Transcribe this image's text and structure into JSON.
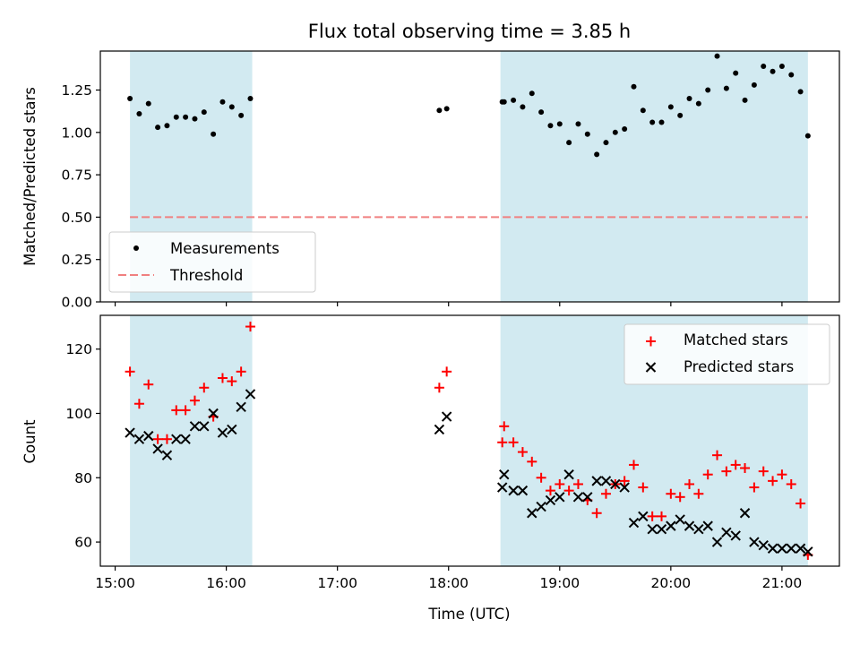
{
  "chart_data": [
    {
      "type": "scatter",
      "title": "Flux total observing time = 3.85 h",
      "ylabel": "Matched/Predicted stars",
      "xlabel": "",
      "ylim": [
        0,
        1.48
      ],
      "xlim": [
        "14:52",
        "21:31"
      ],
      "yticks": [
        "0.00",
        "0.25",
        "0.50",
        "0.75",
        "1.00",
        "1.25"
      ],
      "shaded_intervals": [
        [
          "15:08",
          "16:14"
        ],
        [
          "18:28",
          "21:14"
        ]
      ],
      "legend": {
        "position": "lower left",
        "measurements_label": "Measurements",
        "threshold_label": "Threshold"
      },
      "threshold": {
        "value": 0.5,
        "color": "#f08080"
      },
      "series": [
        {
          "name": "Measurements",
          "color": "#000000",
          "points": [
            [
              "15:08",
              1.2
            ],
            [
              "15:13",
              1.11
            ],
            [
              "15:18",
              1.17
            ],
            [
              "15:23",
              1.03
            ],
            [
              "15:28",
              1.04
            ],
            [
              "15:33",
              1.09
            ],
            [
              "15:38",
              1.09
            ],
            [
              "15:43",
              1.08
            ],
            [
              "15:48",
              1.12
            ],
            [
              "15:53",
              0.99
            ],
            [
              "15:58",
              1.18
            ],
            [
              "16:03",
              1.15
            ],
            [
              "16:08",
              1.1
            ],
            [
              "16:13",
              1.2
            ],
            [
              "17:55",
              1.13
            ],
            [
              "17:59",
              1.14
            ],
            [
              "18:29",
              1.18
            ],
            [
              "18:30",
              1.18
            ],
            [
              "18:35",
              1.19
            ],
            [
              "18:40",
              1.15
            ],
            [
              "18:45",
              1.23
            ],
            [
              "18:50",
              1.12
            ],
            [
              "18:55",
              1.04
            ],
            [
              "19:00",
              1.05
            ],
            [
              "19:05",
              0.94
            ],
            [
              "19:10",
              1.05
            ],
            [
              "19:15",
              0.99
            ],
            [
              "19:20",
              0.87
            ],
            [
              "19:25",
              0.94
            ],
            [
              "19:30",
              1.0
            ],
            [
              "19:35",
              1.02
            ],
            [
              "19:40",
              1.27
            ],
            [
              "19:45",
              1.13
            ],
            [
              "19:50",
              1.06
            ],
            [
              "19:55",
              1.06
            ],
            [
              "20:00",
              1.15
            ],
            [
              "20:05",
              1.1
            ],
            [
              "20:10",
              1.2
            ],
            [
              "20:15",
              1.17
            ],
            [
              "20:20",
              1.25
            ],
            [
              "20:25",
              1.45
            ],
            [
              "20:30",
              1.26
            ],
            [
              "20:35",
              1.35
            ],
            [
              "20:40",
              1.19
            ],
            [
              "20:45",
              1.28
            ],
            [
              "20:50",
              1.39
            ],
            [
              "20:55",
              1.36
            ],
            [
              "21:00",
              1.39
            ],
            [
              "21:05",
              1.34
            ],
            [
              "21:10",
              1.24
            ],
            [
              "21:14",
              0.98
            ]
          ]
        }
      ]
    },
    {
      "type": "scatter",
      "title": "",
      "ylabel": "Count",
      "xlabel": "Time (UTC)",
      "ylim": [
        52.5,
        130.5
      ],
      "xlim": [
        "14:52",
        "21:31"
      ],
      "xticks": [
        "15:00",
        "16:00",
        "17:00",
        "18:00",
        "19:00",
        "20:00",
        "21:00"
      ],
      "yticks": [
        "60",
        "80",
        "100",
        "120"
      ],
      "shaded_intervals": [
        [
          "15:08",
          "16:14"
        ],
        [
          "18:28",
          "21:14"
        ]
      ],
      "legend": {
        "position": "upper right"
      },
      "series": [
        {
          "name": "Matched stars",
          "marker": "+",
          "color": "#ff0000",
          "points": [
            [
              "15:08",
              113
            ],
            [
              "15:13",
              103
            ],
            [
              "15:18",
              109
            ],
            [
              "15:23",
              92
            ],
            [
              "15:28",
              92
            ],
            [
              "15:33",
              101
            ],
            [
              "15:38",
              101
            ],
            [
              "15:43",
              104
            ],
            [
              "15:48",
              108
            ],
            [
              "15:53",
              99
            ],
            [
              "15:58",
              111
            ],
            [
              "16:03",
              110
            ],
            [
              "16:08",
              113
            ],
            [
              "16:13",
              127
            ],
            [
              "17:55",
              108
            ],
            [
              "17:59",
              113
            ],
            [
              "18:29",
              91
            ],
            [
              "18:30",
              96
            ],
            [
              "18:35",
              91
            ],
            [
              "18:40",
              88
            ],
            [
              "18:45",
              85
            ],
            [
              "18:50",
              80
            ],
            [
              "18:55",
              76
            ],
            [
              "19:00",
              78
            ],
            [
              "19:05",
              76
            ],
            [
              "19:10",
              78
            ],
            [
              "19:15",
              73
            ],
            [
              "19:20",
              69
            ],
            [
              "19:25",
              75
            ],
            [
              "19:30",
              78
            ],
            [
              "19:35",
              79
            ],
            [
              "19:40",
              84
            ],
            [
              "19:45",
              77
            ],
            [
              "19:50",
              68
            ],
            [
              "19:55",
              68
            ],
            [
              "20:00",
              75
            ],
            [
              "20:05",
              74
            ],
            [
              "20:10",
              78
            ],
            [
              "20:15",
              75
            ],
            [
              "20:20",
              81
            ],
            [
              "20:25",
              87
            ],
            [
              "20:30",
              82
            ],
            [
              "20:35",
              84
            ],
            [
              "20:40",
              83
            ],
            [
              "20:45",
              77
            ],
            [
              "20:50",
              82
            ],
            [
              "20:55",
              79
            ],
            [
              "21:00",
              81
            ],
            [
              "21:05",
              78
            ],
            [
              "21:10",
              72
            ],
            [
              "21:14",
              56
            ]
          ]
        },
        {
          "name": "Predicted stars",
          "marker": "x",
          "color": "#000000",
          "points": [
            [
              "15:08",
              94
            ],
            [
              "15:13",
              92
            ],
            [
              "15:18",
              93
            ],
            [
              "15:23",
              89
            ],
            [
              "15:28",
              87
            ],
            [
              "15:33",
              92
            ],
            [
              "15:38",
              92
            ],
            [
              "15:43",
              96
            ],
            [
              "15:48",
              96
            ],
            [
              "15:53",
              100
            ],
            [
              "15:58",
              94
            ],
            [
              "16:03",
              95
            ],
            [
              "16:08",
              102
            ],
            [
              "16:13",
              106
            ],
            [
              "17:55",
              95
            ],
            [
              "17:59",
              99
            ],
            [
              "18:29",
              77
            ],
            [
              "18:30",
              81
            ],
            [
              "18:35",
              76
            ],
            [
              "18:40",
              76
            ],
            [
              "18:45",
              69
            ],
            [
              "18:50",
              71
            ],
            [
              "18:55",
              73
            ],
            [
              "19:00",
              74
            ],
            [
              "19:05",
              81
            ],
            [
              "19:10",
              74
            ],
            [
              "19:15",
              74
            ],
            [
              "19:20",
              79
            ],
            [
              "19:25",
              79
            ],
            [
              "19:30",
              78
            ],
            [
              "19:35",
              77
            ],
            [
              "19:40",
              66
            ],
            [
              "19:45",
              68
            ],
            [
              "19:50",
              64
            ],
            [
              "19:55",
              64
            ],
            [
              "20:00",
              65
            ],
            [
              "20:05",
              67
            ],
            [
              "20:10",
              65
            ],
            [
              "20:15",
              64
            ],
            [
              "20:20",
              65
            ],
            [
              "20:25",
              60
            ],
            [
              "20:30",
              63
            ],
            [
              "20:35",
              62
            ],
            [
              "20:40",
              69
            ],
            [
              "20:45",
              60
            ],
            [
              "20:50",
              59
            ],
            [
              "20:55",
              58
            ],
            [
              "21:00",
              58
            ],
            [
              "21:05",
              58
            ],
            [
              "21:10",
              58
            ],
            [
              "21:14",
              57
            ]
          ]
        }
      ]
    }
  ],
  "colors": {
    "shade": "#add8e6",
    "shade_opacity": 0.55
  }
}
